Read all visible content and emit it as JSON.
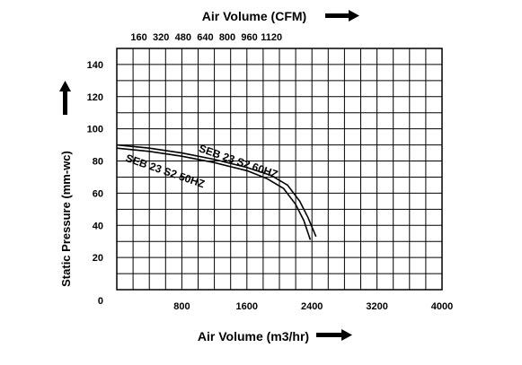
{
  "chart_data": {
    "type": "line",
    "top_axis_label": "Air Volume (CFM)",
    "top_axis_ticks": [
      "160",
      "320",
      "480",
      "640",
      "800",
      "960",
      "1120"
    ],
    "xlabel": "Air Volume (m3/hr)",
    "ylabel": "Static Pressure (mm-wc)",
    "x_ticks": [
      "800",
      "1600",
      "2400",
      "3200",
      "4000"
    ],
    "y_ticks": [
      "0",
      "20",
      "40",
      "60",
      "80",
      "100",
      "120",
      "140"
    ],
    "xlim": [
      0,
      4000
    ],
    "ylim": [
      0,
      150
    ],
    "grid": true,
    "series": [
      {
        "name": "SEB 23 S2 60HZ",
        "x": [
          0,
          400,
          800,
          1200,
          1600,
          1900,
          2100,
          2250,
          2350,
          2450
        ],
        "y": [
          90,
          88,
          85,
          81,
          76,
          71,
          65,
          55,
          45,
          33
        ]
      },
      {
        "name": "SEB 23 S2 50HZ",
        "x": [
          0,
          400,
          800,
          1200,
          1600,
          1850,
          2050,
          2200,
          2300,
          2380
        ],
        "y": [
          88,
          86,
          83,
          79,
          74,
          69,
          63,
          53,
          43,
          31
        ]
      }
    ]
  }
}
